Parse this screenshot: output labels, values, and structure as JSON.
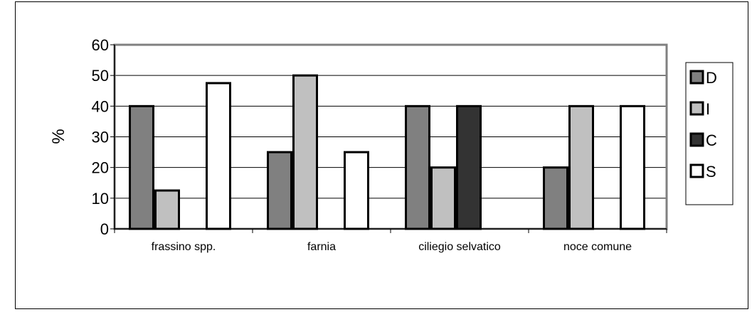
{
  "chart_data": {
    "type": "bar",
    "title": "",
    "xlabel": "",
    "ylabel": "%",
    "ylim": [
      0,
      60
    ],
    "yticks": [
      "0",
      "10",
      "20",
      "30",
      "40",
      "50",
      "60"
    ],
    "grid": true,
    "legend_position": "right",
    "categories": [
      "frassino spp.",
      "farnia",
      "ciliegio selvatico",
      "noce comune"
    ],
    "series": [
      {
        "name": "D",
        "color": "#808080",
        "values": [
          40,
          25,
          40,
          20
        ]
      },
      {
        "name": "I",
        "color": "#c0c0c0",
        "values": [
          12.5,
          50,
          20,
          40
        ]
      },
      {
        "name": "C",
        "color": "#333333",
        "values": [
          0,
          0,
          40,
          0
        ]
      },
      {
        "name": "S",
        "color": "#ffffff",
        "values": [
          47.5,
          25,
          0,
          40
        ]
      }
    ]
  }
}
